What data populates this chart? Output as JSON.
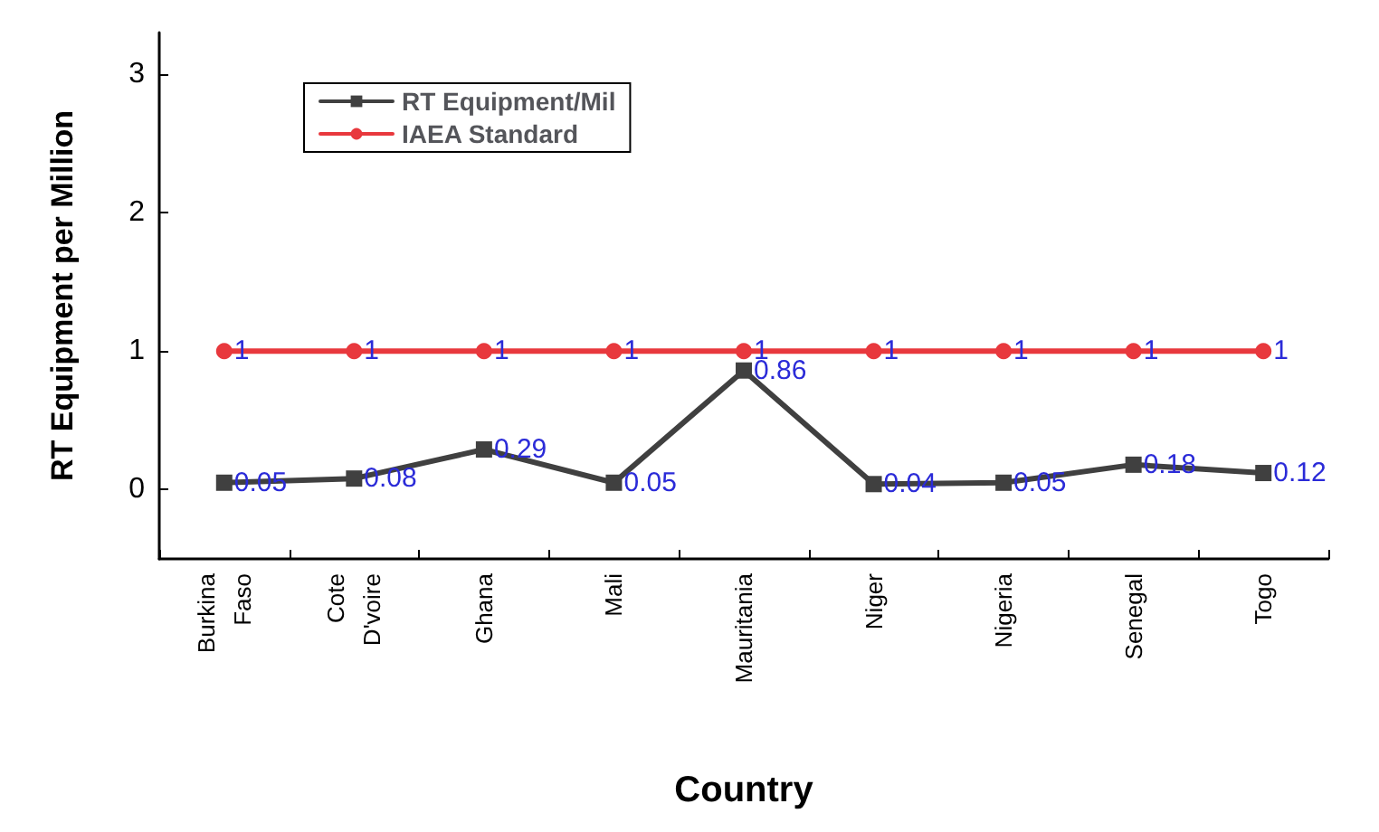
{
  "chart_data": {
    "type": "line",
    "xlabel": "Country",
    "ylabel": "RT Equipment per Million",
    "categories": [
      "Burkina Faso",
      "Cote D'voire",
      "Ghana",
      "Mali",
      "Mauritania",
      "Niger",
      "Nigeria",
      "Senegal",
      "Togo"
    ],
    "series": [
      {
        "name": "RT Equipment/Mil",
        "color": "#404040",
        "marker": "square",
        "values": [
          0.05,
          0.08,
          0.29,
          0.05,
          0.86,
          0.04,
          0.05,
          0.18,
          0.12
        ]
      },
      {
        "name": "IAEA Standard",
        "color": "#e8383d",
        "marker": "circle",
        "values": [
          1,
          1,
          1,
          1,
          1,
          1,
          1,
          1,
          1
        ]
      }
    ],
    "ylim": [
      -0.5,
      3.3
    ],
    "yticks": [
      0,
      1,
      2,
      3
    ],
    "grid": false,
    "legend": "top left",
    "data_labels": true,
    "line_style": "solid"
  }
}
